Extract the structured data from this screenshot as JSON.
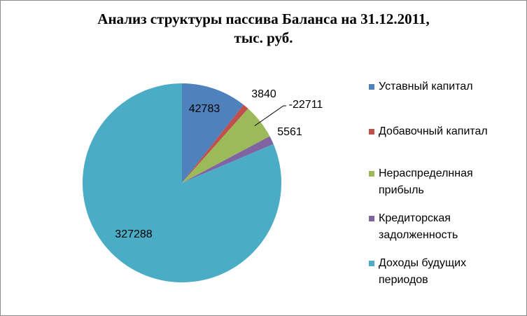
{
  "chart_data": {
    "type": "pie",
    "title_lines": [
      "Анализ структуры пассива Баланса на 31.12.2011,",
      "тыс. руб."
    ],
    "categories": [
      "Уставный капитал",
      "Добавочный капитал",
      "Нераспределнная прибыль",
      "Кредиторская задолженность",
      "Доходы будущих периодов"
    ],
    "values": [
      42783,
      3840,
      -22711,
      5561,
      327288
    ],
    "data_labels": [
      "42783",
      "3840",
      "-22711",
      "5561",
      "327288"
    ],
    "colors": [
      "#4f81bd",
      "#c0504d",
      "#9bbb59",
      "#8064a2",
      "#4bacc6"
    ],
    "legend_position": "right"
  }
}
